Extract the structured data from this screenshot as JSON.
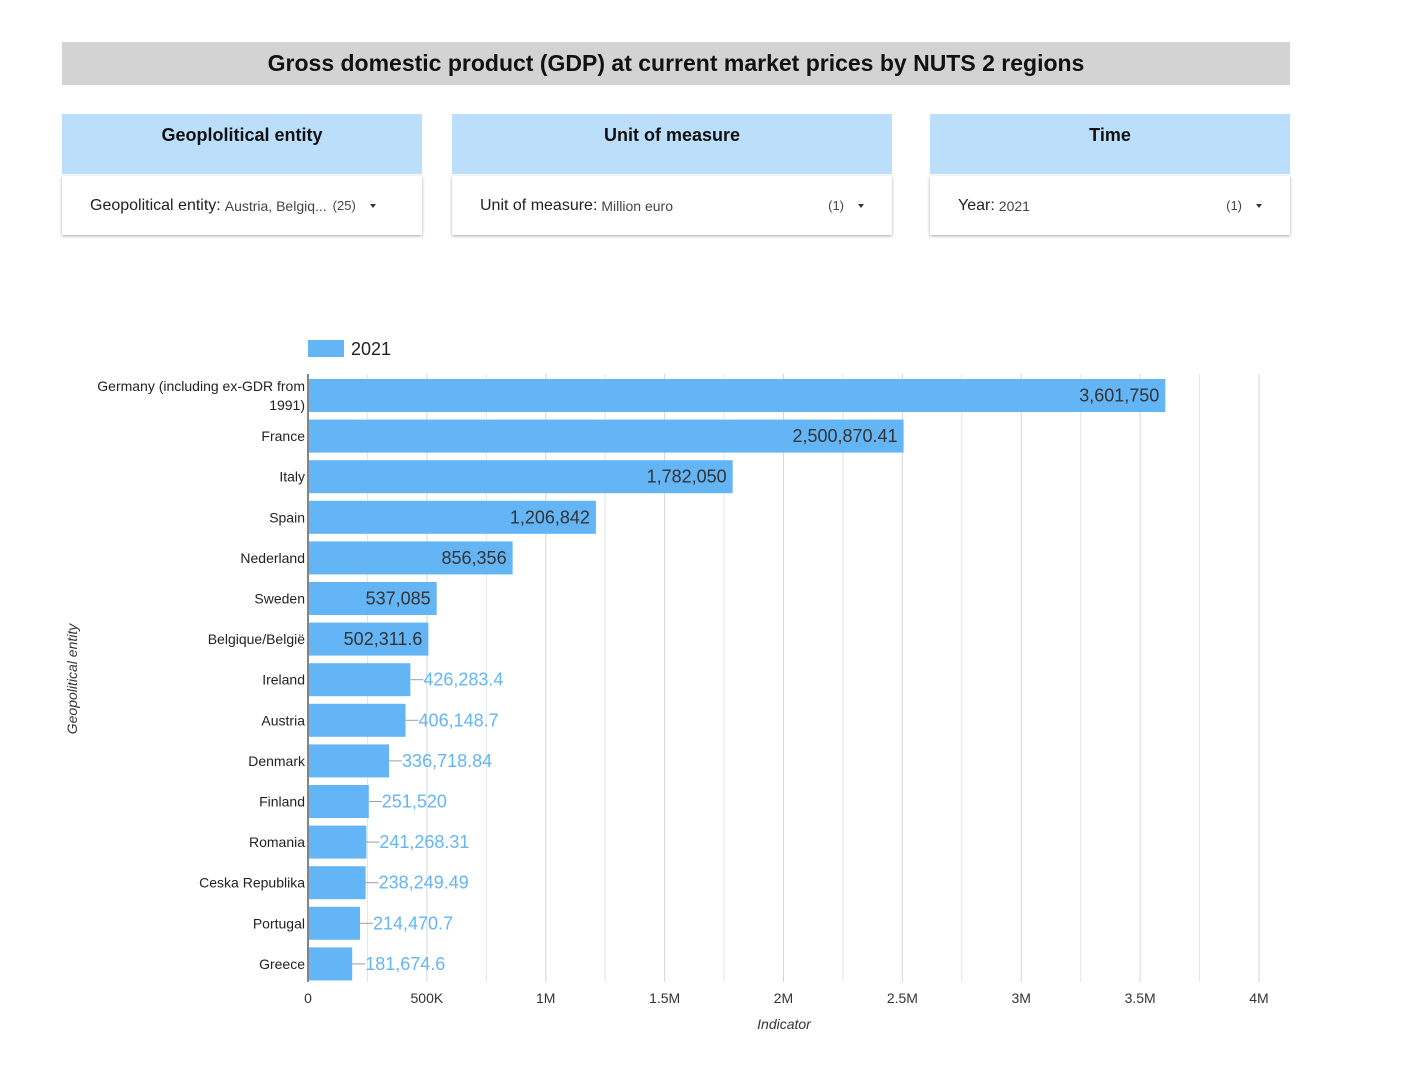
{
  "page_title": "Gross domestic product (GDP) at current market prices by NUTS 2 regions",
  "filters": [
    {
      "header": "Geoplolitical entity",
      "label": "Geopolitical entity:",
      "value": "Austria, Belgiq...",
      "count": "(25)"
    },
    {
      "header": "Unit of measure",
      "label": "Unit of measure:",
      "value": "Million euro",
      "count": "(1)"
    },
    {
      "header": "Time",
      "label": "Year:",
      "value": "2021",
      "count": "(1)"
    }
  ],
  "colors": {
    "bar": "#64b5f6",
    "header_bg": "#bbdefb",
    "title_bg": "#d3d3d3"
  },
  "chart_data": {
    "type": "bar",
    "orientation": "horizontal",
    "xlabel": "Indicator",
    "ylabel": "Geopolitical entity",
    "xlim": [
      0,
      4000000
    ],
    "x_ticks": [
      "0",
      "500K",
      "1M",
      "1.5M",
      "2M",
      "2.5M",
      "3M",
      "3.5M",
      "4M"
    ],
    "grid": true,
    "legend": {
      "position": "top-left",
      "entries": [
        "2021"
      ]
    },
    "categories": [
      [
        "Germany (including ex-GDR from",
        "1991)"
      ],
      [
        "France"
      ],
      [
        "Italy"
      ],
      [
        "Spain"
      ],
      [
        "Nederland"
      ],
      [
        "Sweden"
      ],
      [
        "Belgique/België"
      ],
      [
        "Ireland"
      ],
      [
        "Austria"
      ],
      [
        "Denmark"
      ],
      [
        "Finland"
      ],
      [
        "Romania"
      ],
      [
        "Ceska Republika"
      ],
      [
        "Portugal"
      ],
      [
        "Greece"
      ]
    ],
    "series": [
      {
        "name": "2021",
        "values": [
          3601750,
          2500870.41,
          1782050,
          1206842,
          856356,
          537085,
          502311.6,
          426283.4,
          406148.7,
          336718.84,
          251520,
          241268.31,
          238249.49,
          214470.7,
          181674.6
        ],
        "labels": [
          "3,601,750",
          "2,500,870.41",
          "1,782,050",
          "1,206,842",
          "856,356",
          "537,085",
          "502,311.6",
          "426,283.4",
          "406,148.7",
          "336,718.84",
          "251,520",
          "241,268.31",
          "238,249.49",
          "214,470.7",
          "181,674.6"
        ]
      }
    ]
  }
}
